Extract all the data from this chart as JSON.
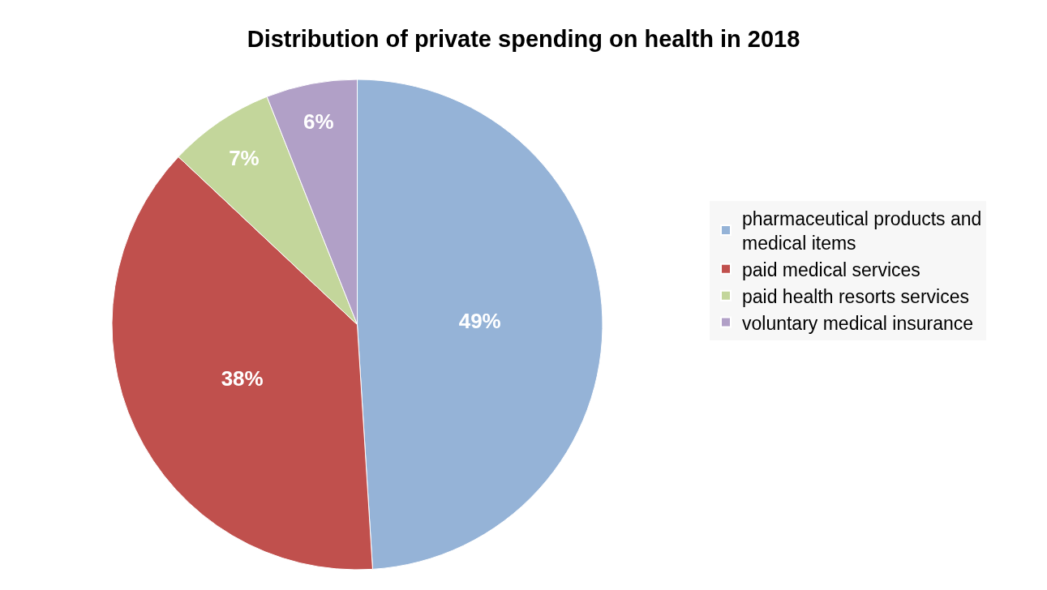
{
  "chart_data": {
    "type": "pie",
    "title": "Distribution of private spending on health in 2018",
    "categories": [
      "pharmaceutical products and medical items",
      "paid medical services",
      "paid health resorts services",
      "voluntary medical insurance"
    ],
    "values": [
      49,
      38,
      7,
      6
    ],
    "colors": [
      "#95b3d7",
      "#c0504d",
      "#c3d69b",
      "#b1a0c7"
    ],
    "value_labels": [
      "49%",
      "38%",
      "7%",
      "6%"
    ],
    "legend": "right"
  }
}
